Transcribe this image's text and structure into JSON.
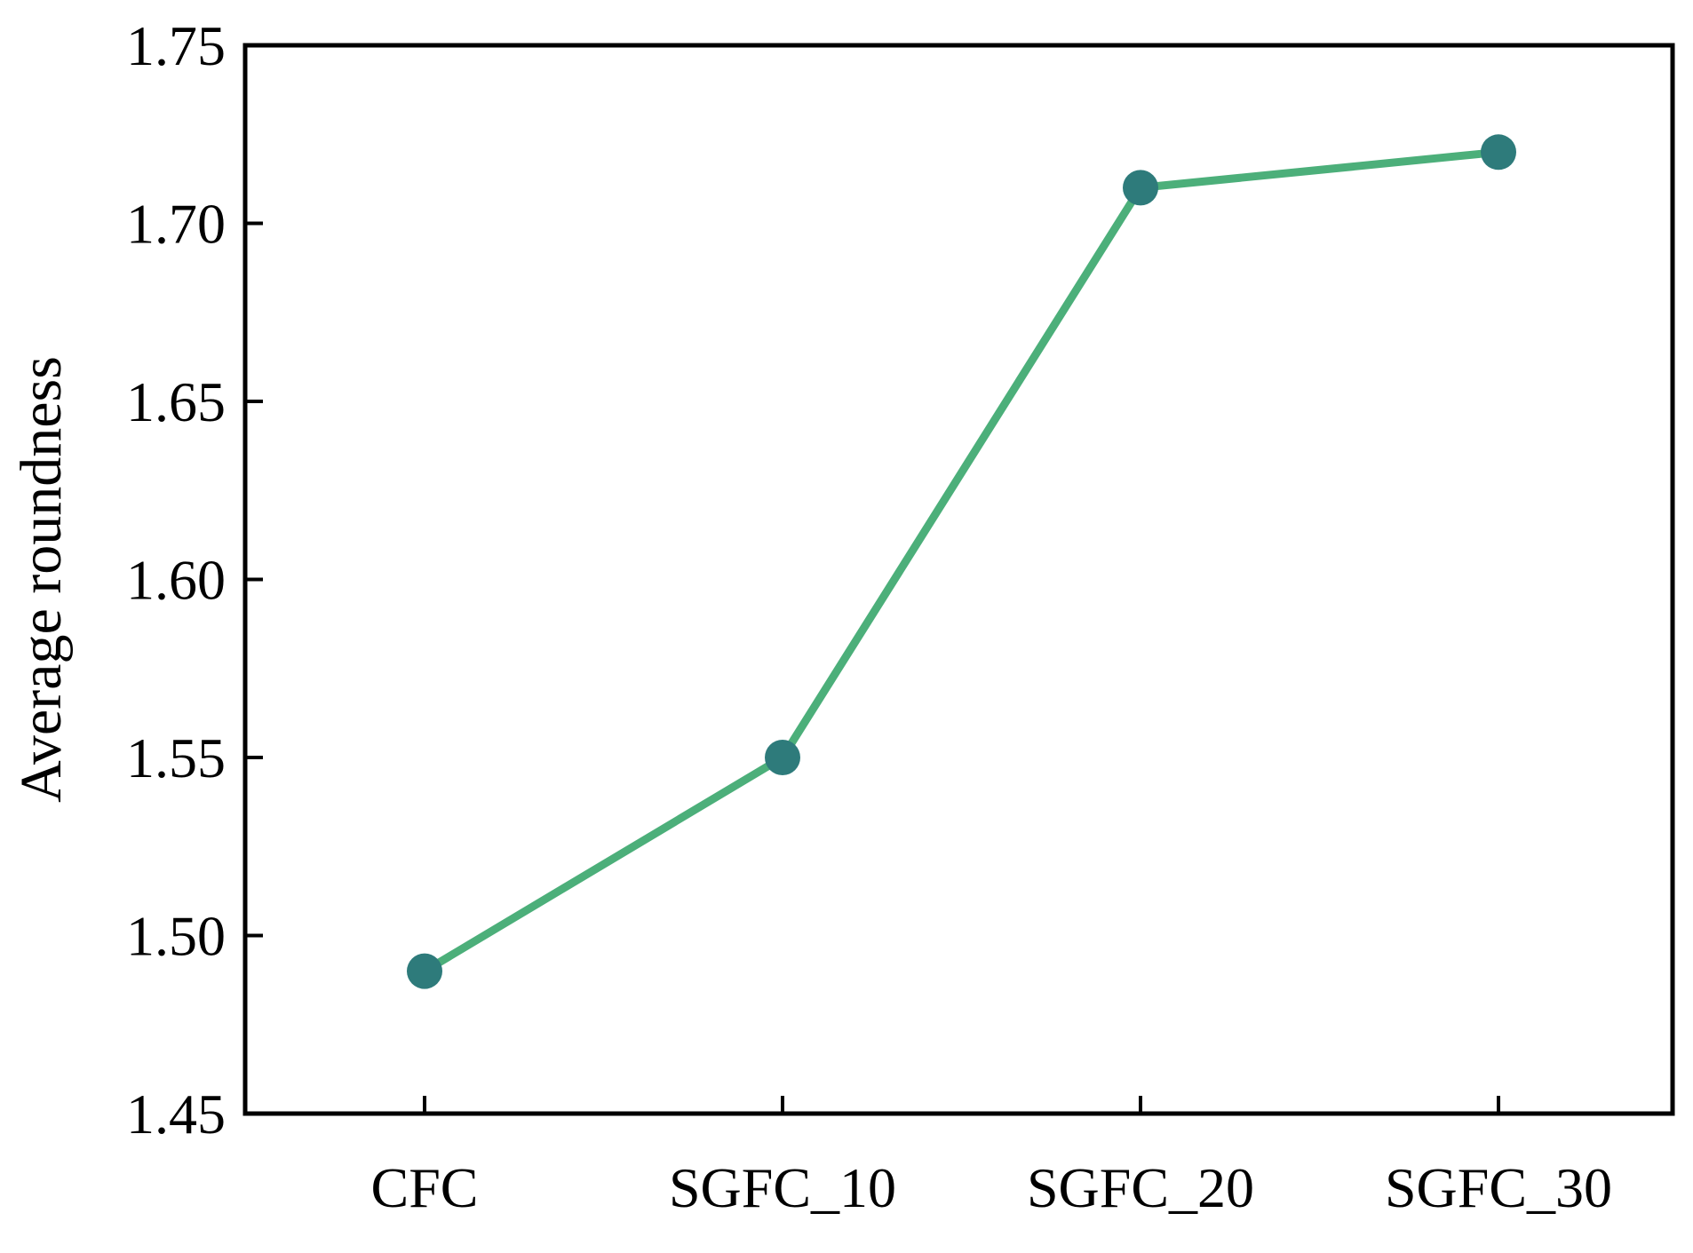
{
  "chart_data": {
    "type": "line",
    "categories": [
      "CFC",
      "SGFC_10",
      "SGFC_20",
      "SGFC_30"
    ],
    "series": [
      {
        "values": [
          1.49,
          1.55,
          1.71,
          1.72
        ],
        "line_color": "#4caf7a",
        "marker_color": "#2e7b7b"
      }
    ],
    "title": "",
    "xlabel": "",
    "ylabel": "Average roundness",
    "ylim": [
      1.45,
      1.75
    ],
    "yticks": [
      "1.45",
      "1.50",
      "1.55",
      "1.60",
      "1.65",
      "1.70",
      "1.75"
    ],
    "grid": false,
    "legend": "none"
  }
}
